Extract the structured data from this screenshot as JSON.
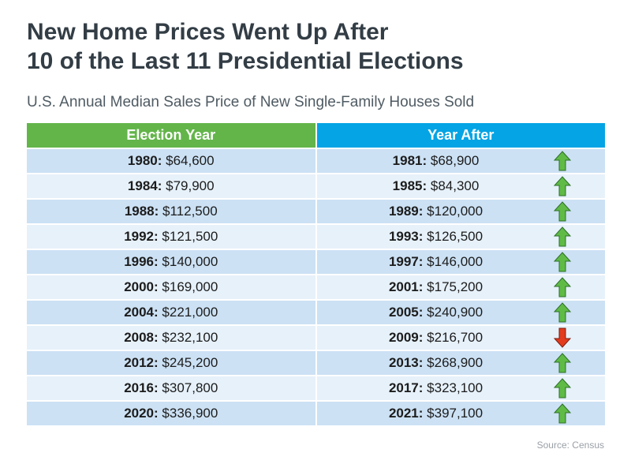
{
  "title_lines": [
    "New Home Prices Went Up After",
    "10 of the Last 11 Presidential Elections"
  ],
  "subtitle": "U.S. Annual Median Sales Price of New Single-Family Houses Sold",
  "source": "Source: Census",
  "colors": {
    "election_header": "#63b54a",
    "after_header": "#05a4e4",
    "row_dark": "#cce1f4",
    "row_light": "#e6f1fa",
    "arrow_up": "#5fbb46",
    "arrow_down": "#e23b1e"
  },
  "chart_data": {
    "type": "table",
    "title": "New Home Prices Went Up After 10 of the Last 11 Presidential Elections",
    "subtitle": "U.S. Annual Median Sales Price of New Single-Family Houses Sold",
    "columns": [
      "Election Year",
      "Year After"
    ],
    "rows": [
      {
        "election_year": "1980",
        "election_price": "$64,600",
        "after_year": "1981",
        "after_price": "$68,900",
        "direction": "up",
        "direction_icon": "arrow-up-icon"
      },
      {
        "election_year": "1984",
        "election_price": "$79,900",
        "after_year": "1985",
        "after_price": "$84,300",
        "direction": "up",
        "direction_icon": "arrow-up-icon"
      },
      {
        "election_year": "1988",
        "election_price": "$112,500",
        "after_year": "1989",
        "after_price": "$120,000",
        "direction": "up",
        "direction_icon": "arrow-up-icon"
      },
      {
        "election_year": "1992",
        "election_price": "$121,500",
        "after_year": "1993",
        "after_price": "$126,500",
        "direction": "up",
        "direction_icon": "arrow-up-icon"
      },
      {
        "election_year": "1996",
        "election_price": "$140,000",
        "after_year": "1997",
        "after_price": "$146,000",
        "direction": "up",
        "direction_icon": "arrow-up-icon"
      },
      {
        "election_year": "2000",
        "election_price": "$169,000",
        "after_year": "2001",
        "after_price": "$175,200",
        "direction": "up",
        "direction_icon": "arrow-up-icon"
      },
      {
        "election_year": "2004",
        "election_price": "$221,000",
        "after_year": "2005",
        "after_price": "$240,900",
        "direction": "up",
        "direction_icon": "arrow-up-icon"
      },
      {
        "election_year": "2008",
        "election_price": "$232,100",
        "after_year": "2009",
        "after_price": "$216,700",
        "direction": "down",
        "direction_icon": "arrow-down-icon"
      },
      {
        "election_year": "2012",
        "election_price": "$245,200",
        "after_year": "2013",
        "after_price": "$268,900",
        "direction": "up",
        "direction_icon": "arrow-up-icon"
      },
      {
        "election_year": "2016",
        "election_price": "$307,800",
        "after_year": "2017",
        "after_price": "$323,100",
        "direction": "up",
        "direction_icon": "arrow-up-icon"
      },
      {
        "election_year": "2020",
        "election_price": "$336,900",
        "after_year": "2021",
        "after_price": "$397,100",
        "direction": "up",
        "direction_icon": "arrow-up-icon"
      }
    ]
  }
}
